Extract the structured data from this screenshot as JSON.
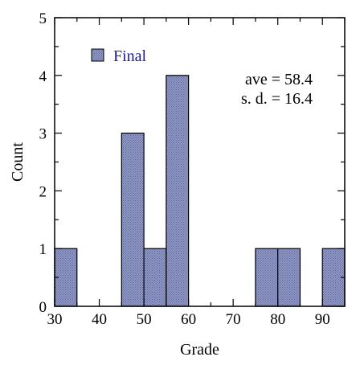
{
  "chart_data": {
    "type": "bar",
    "xlabel": "Grade",
    "ylabel": "Count",
    "xlim": [
      30,
      95
    ],
    "ylim": [
      0,
      5
    ],
    "x_ticks": [
      30,
      40,
      50,
      60,
      70,
      80,
      90
    ],
    "y_ticks": [
      0,
      1,
      2,
      3,
      4,
      5
    ],
    "bin_width": 5,
    "series": [
      {
        "name": "Final",
        "bins": [
          {
            "x0": 30,
            "x1": 35,
            "count": 1
          },
          {
            "x0": 45,
            "x1": 50,
            "count": 3
          },
          {
            "x0": 50,
            "x1": 55,
            "count": 1
          },
          {
            "x0": 55,
            "x1": 60,
            "count": 4
          },
          {
            "x0": 75,
            "x1": 80,
            "count": 1
          },
          {
            "x0": 80,
            "x1": 85,
            "count": 1
          },
          {
            "x0": 90,
            "x1": 95,
            "count": 1
          }
        ]
      }
    ],
    "legend": {
      "label": "Final",
      "placement": "top-left"
    },
    "annotations": [
      "ave = 58.4",
      "s. d. = 16.4"
    ],
    "grid": false
  },
  "colors": {
    "bar_fill": "#8e96c4",
    "bar_stroke": "#000000",
    "legend_text": "#1a1aa6",
    "axis": "#000000"
  }
}
